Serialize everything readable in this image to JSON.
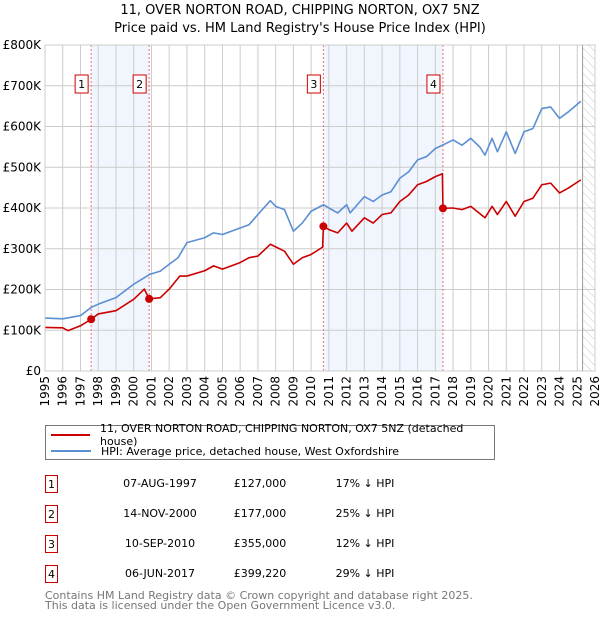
{
  "title_line1": "11, OVER NORTON ROAD, CHIPPING NORTON, OX7 5NZ",
  "title_line2": "Price paid vs. HM Land Registry's House Price Index (HPI)",
  "chart_data": {
    "type": "line",
    "title": "11, OVER NORTON ROAD, CHIPPING NORTON, OX7 5NZ — Price paid vs. HM Land Registry's House Price Index (HPI)",
    "xlim": [
      1995,
      2026
    ],
    "ylim": [
      0,
      800000
    ],
    "grid": true,
    "x_ticks": [
      "1995",
      "1996",
      "1997",
      "1998",
      "1999",
      "2000",
      "2001",
      "2002",
      "2003",
      "2004",
      "2005",
      "2006",
      "2007",
      "2008",
      "2009",
      "2010",
      "2011",
      "2012",
      "2013",
      "2014",
      "2015",
      "2016",
      "2017",
      "2018",
      "2019",
      "2020",
      "2021",
      "2022",
      "2023",
      "2024",
      "2025",
      "2026"
    ],
    "y_ticks": [
      {
        "value": 0,
        "label": "£0"
      },
      {
        "value": 100000,
        "label": "£100K"
      },
      {
        "value": 200000,
        "label": "£200K"
      },
      {
        "value": 300000,
        "label": "£300K"
      },
      {
        "value": 400000,
        "label": "£400K"
      },
      {
        "value": 500000,
        "label": "£500K"
      },
      {
        "value": 600000,
        "label": "£600K"
      },
      {
        "value": 700000,
        "label": "£700K"
      },
      {
        "value": 800000,
        "label": "£800K"
      }
    ],
    "series": [
      {
        "name": "11, OVER NORTON ROAD, CHIPPING NORTON, OX7 5NZ (detached house)",
        "color": "#cc0000",
        "points": [
          [
            1995,
            107000
          ],
          [
            1996,
            106000
          ],
          [
            1996.3,
            99000
          ],
          [
            1997,
            111000
          ],
          [
            1997.6,
            127000
          ],
          [
            1998,
            140000
          ],
          [
            1999,
            148000
          ],
          [
            2000,
            176000
          ],
          [
            2000.6,
            201000
          ],
          [
            2000.87,
            177000
          ],
          [
            2001.5,
            180000
          ],
          [
            2002,
            201000
          ],
          [
            2002.6,
            233000
          ],
          [
            2003,
            233000
          ],
          [
            2004,
            246000
          ],
          [
            2004.5,
            258000
          ],
          [
            2005,
            250000
          ],
          [
            2006,
            266000
          ],
          [
            2006.5,
            278000
          ],
          [
            2007,
            282000
          ],
          [
            2007.7,
            311000
          ],
          [
            2008.5,
            294000
          ],
          [
            2009,
            262000
          ],
          [
            2009.5,
            278000
          ],
          [
            2010,
            286000
          ],
          [
            2010.65,
            304000
          ],
          [
            2010.69,
            355000
          ],
          [
            2011,
            347000
          ],
          [
            2011.5,
            339000
          ],
          [
            2012,
            363000
          ],
          [
            2012.3,
            343000
          ],
          [
            2013,
            376000
          ],
          [
            2013.5,
            363000
          ],
          [
            2014,
            384000
          ],
          [
            2014.5,
            388000
          ],
          [
            2015,
            416000
          ],
          [
            2015.5,
            432000
          ],
          [
            2016,
            457000
          ],
          [
            2016.5,
            465000
          ],
          [
            2017,
            477000
          ],
          [
            2017.4,
            484000
          ],
          [
            2017.43,
            399220
          ],
          [
            2018,
            400000
          ],
          [
            2018.5,
            396000
          ],
          [
            2019,
            404000
          ],
          [
            2019.8,
            376000
          ],
          [
            2020.2,
            404000
          ],
          [
            2020.5,
            384000
          ],
          [
            2021,
            416000
          ],
          [
            2021.5,
            380000
          ],
          [
            2022,
            416000
          ],
          [
            2022.5,
            424000
          ],
          [
            2023,
            457000
          ],
          [
            2023.5,
            461000
          ],
          [
            2024,
            437000
          ],
          [
            2024.5,
            449000
          ],
          [
            2025.2,
            469000
          ]
        ]
      },
      {
        "name": "HPI: Average price, detached house, West Oxfordshire",
        "color": "#5b8fd4",
        "points": [
          [
            1995,
            130000
          ],
          [
            1996,
            128000
          ],
          [
            1997,
            136000
          ],
          [
            1997.6,
            156000
          ],
          [
            1998,
            164000
          ],
          [
            1999,
            180000
          ],
          [
            2000,
            213000
          ],
          [
            2000.9,
            237000
          ],
          [
            2001.5,
            245000
          ],
          [
            2002,
            262000
          ],
          [
            2002.5,
            278000
          ],
          [
            2003,
            315000
          ],
          [
            2004,
            327000
          ],
          [
            2004.5,
            339000
          ],
          [
            2005,
            335000
          ],
          [
            2006,
            351000
          ],
          [
            2006.5,
            359000
          ],
          [
            2007,
            384000
          ],
          [
            2007.7,
            418000
          ],
          [
            2008,
            404000
          ],
          [
            2008.5,
            396000
          ],
          [
            2009,
            343000
          ],
          [
            2009.5,
            363000
          ],
          [
            2010,
            392000
          ],
          [
            2010.7,
            408000
          ],
          [
            2011,
            400000
          ],
          [
            2011.5,
            388000
          ],
          [
            2012,
            408000
          ],
          [
            2012.2,
            388000
          ],
          [
            2013,
            428000
          ],
          [
            2013.5,
            416000
          ],
          [
            2014,
            432000
          ],
          [
            2014.5,
            440000
          ],
          [
            2015,
            473000
          ],
          [
            2015.5,
            489000
          ],
          [
            2016,
            518000
          ],
          [
            2016.5,
            526000
          ],
          [
            2017,
            546000
          ],
          [
            2017.4,
            554000
          ],
          [
            2018,
            567000
          ],
          [
            2018.5,
            554000
          ],
          [
            2019,
            571000
          ],
          [
            2019.5,
            550000
          ],
          [
            2019.8,
            530000
          ],
          [
            2020.2,
            571000
          ],
          [
            2020.5,
            538000
          ],
          [
            2021,
            587000
          ],
          [
            2021.5,
            534000
          ],
          [
            2022,
            587000
          ],
          [
            2022.5,
            595000
          ],
          [
            2023,
            644000
          ],
          [
            2023.5,
            648000
          ],
          [
            2024,
            620000
          ],
          [
            2024.5,
            636000
          ],
          [
            2025.2,
            662000
          ]
        ]
      }
    ],
    "sales": [
      {
        "label": "1",
        "x": 1997.6,
        "value": 127000
      },
      {
        "label": "2",
        "x": 2000.87,
        "value": 177000
      },
      {
        "label": "3",
        "x": 2010.69,
        "value": 355000
      },
      {
        "label": "4",
        "x": 2017.43,
        "value": 399220
      }
    ],
    "shaded_ranges": [
      [
        1997.6,
        2000.87
      ],
      [
        2010.69,
        2017.43
      ]
    ],
    "hatched_from": 2025.3,
    "legend_position": "below"
  },
  "legend": [
    {
      "label": "11, OVER NORTON ROAD, CHIPPING NORTON, OX7 5NZ (detached house)",
      "color": "#cc0000"
    },
    {
      "label": "HPI: Average price, detached house, West Oxfordshire",
      "color": "#5b8fd4"
    }
  ],
  "transactions": [
    {
      "num": "1",
      "date": "07-AUG-1997",
      "price": "£127,000",
      "hpi": "17% ↓ HPI"
    },
    {
      "num": "2",
      "date": "14-NOV-2000",
      "price": "£177,000",
      "hpi": "25% ↓ HPI"
    },
    {
      "num": "3",
      "date": "10-SEP-2010",
      "price": "£355,000",
      "hpi": "12% ↓ HPI"
    },
    {
      "num": "4",
      "date": "06-JUN-2017",
      "price": "£399,220",
      "hpi": "29% ↓ HPI"
    }
  ],
  "footer_line1": "Contains HM Land Registry data © Crown copyright and database right 2025.",
  "footer_line2": "This data is licensed under the Open Government Licence v3.0."
}
